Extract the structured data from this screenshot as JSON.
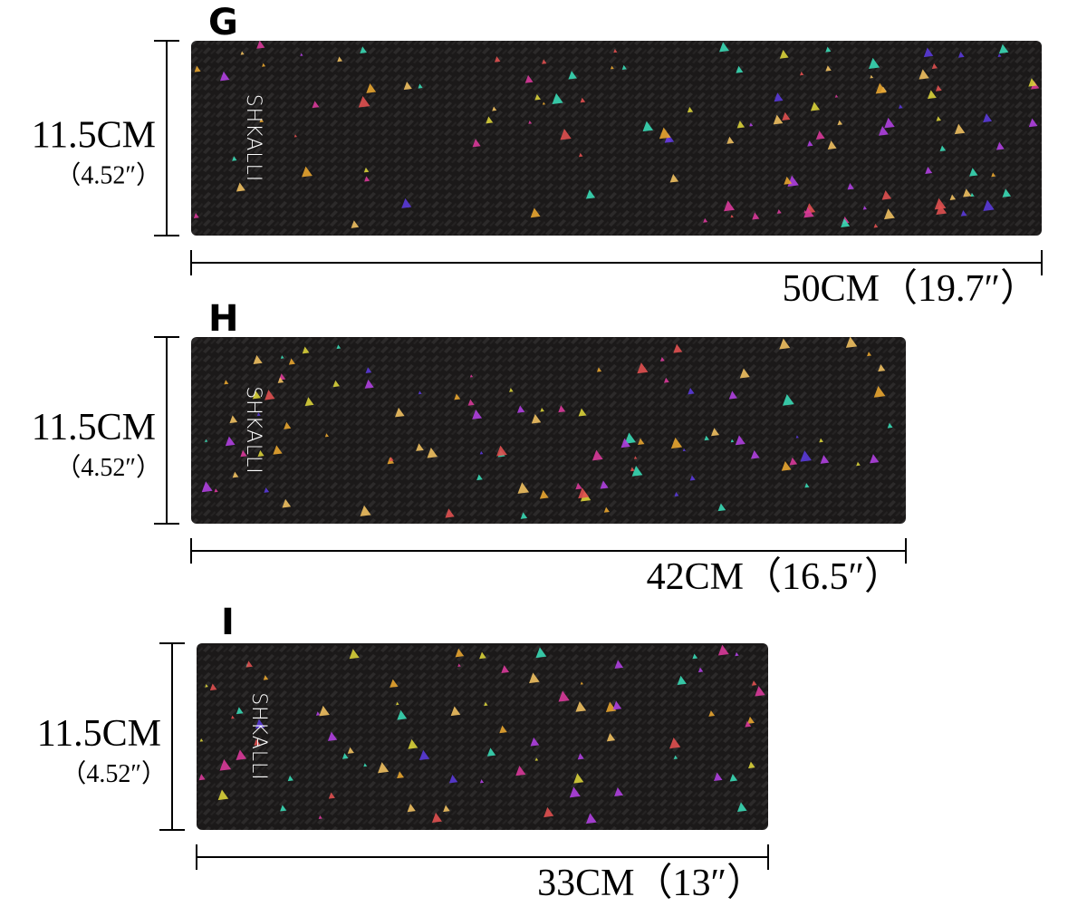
{
  "items": [
    {
      "label": "G",
      "brand": "SHKALLI",
      "height": "11.5CM",
      "height_inch": "（4.52″）",
      "width": "50CM（19.7″）"
    },
    {
      "label": "H",
      "brand": "SHKALLI",
      "height": "11.5CM",
      "height_inch": "（4.52″）",
      "width": "42CM（16.5″）"
    },
    {
      "label": "I",
      "brand": "SHKALLI",
      "height": "11.5CM",
      "height_inch": "（4.52″）",
      "width": "33CM（13″）"
    }
  ]
}
